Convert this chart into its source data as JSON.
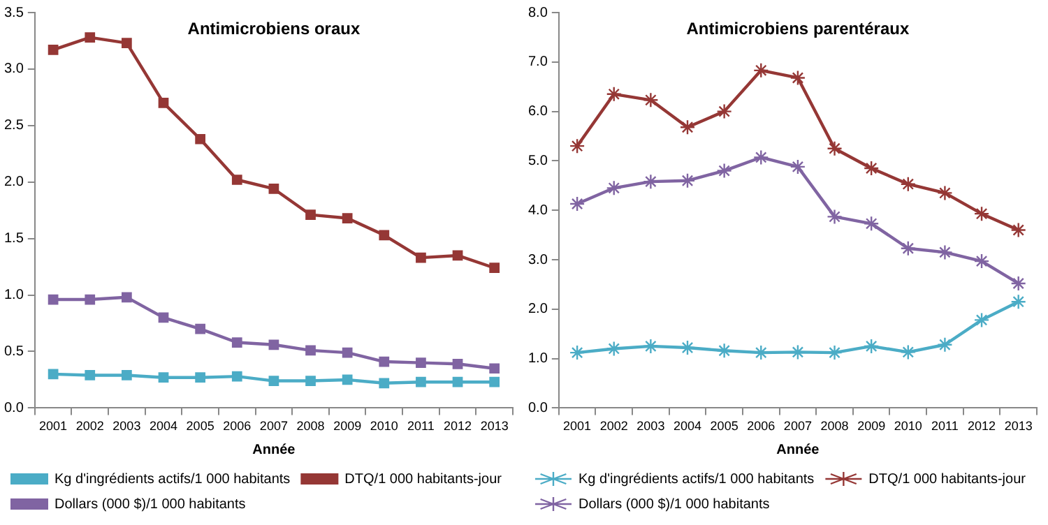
{
  "chart_data": [
    {
      "type": "line",
      "title": "Antimicrobiens oraux",
      "xlabel": "Année",
      "categories": [
        "2001",
        "2002",
        "2003",
        "2004",
        "2005",
        "2006",
        "2007",
        "2008",
        "2009",
        "2010",
        "2011",
        "2012",
        "2013"
      ],
      "series": [
        {
          "name": "Kg d'ingrédients actifs/1 000 habitants",
          "color": "#4bacc6",
          "values": [
            0.3,
            0.29,
            0.29,
            0.27,
            0.27,
            0.28,
            0.24,
            0.24,
            0.25,
            0.22,
            0.23,
            0.23,
            0.23
          ]
        },
        {
          "name": "DTQ/1 000 habitants-jour",
          "color": "#953735",
          "values": [
            3.17,
            3.28,
            3.23,
            2.7,
            2.38,
            2.02,
            1.94,
            1.71,
            1.68,
            1.53,
            1.33,
            1.35,
            1.24
          ]
        },
        {
          "name": "Dollars (000 $)/1 000 habitants",
          "color": "#8064a2",
          "values": [
            0.96,
            0.96,
            0.98,
            0.8,
            0.7,
            0.58,
            0.56,
            0.51,
            0.49,
            0.41,
            0.4,
            0.39,
            0.35
          ]
        }
      ],
      "ylim": [
        0,
        3.5
      ],
      "yticks": [
        {
          "value": 0,
          "label": "0.0"
        },
        {
          "value": 0.5,
          "label": "0.5"
        },
        {
          "value": 1,
          "label": "1.0"
        },
        {
          "value": 1.5,
          "label": "1.5"
        },
        {
          "value": 2,
          "label": "2.0"
        },
        {
          "value": 2.5,
          "label": "2.5"
        },
        {
          "value": 3,
          "label": "3.0"
        },
        {
          "value": 3.5,
          "label": "3.5"
        }
      ],
      "grid": false,
      "legend": "bottom",
      "marker": "square",
      "line_style": "solid"
    },
    {
      "type": "line",
      "title": "Antimicrobiens parentéraux",
      "xlabel": "Année",
      "categories": [
        "2001",
        "2002",
        "2003",
        "2004",
        "2005",
        "2006",
        "2007",
        "2008",
        "2009",
        "2010",
        "2011",
        "2012",
        "2013"
      ],
      "series": [
        {
          "name": "Kg d'ingrédients actifs/1 000 habitants",
          "color": "#4bacc6",
          "values": [
            1.12,
            1.2,
            1.25,
            1.22,
            1.16,
            1.12,
            1.13,
            1.12,
            1.25,
            1.13,
            1.28,
            1.78,
            2.15
          ]
        },
        {
          "name": "DTQ/1 000 habitants-jour",
          "color": "#953735",
          "values": [
            5.3,
            6.35,
            6.23,
            5.68,
            6.0,
            6.83,
            6.68,
            5.25,
            4.85,
            4.53,
            4.35,
            3.93,
            3.6
          ]
        },
        {
          "name": "Dollars (000 $)/1 000 habitants",
          "color": "#8064a2",
          "values": [
            4.13,
            4.45,
            4.58,
            4.6,
            4.8,
            5.07,
            4.88,
            3.87,
            3.73,
            3.23,
            3.15,
            2.97,
            2.52
          ]
        }
      ],
      "ylim": [
        0,
        8
      ],
      "yticks": [
        {
          "value": 0,
          "label": "0.0"
        },
        {
          "value": 1,
          "label": "1.0"
        },
        {
          "value": 2,
          "label": "2.0"
        },
        {
          "value": 3,
          "label": "3.0"
        },
        {
          "value": 4,
          "label": "4.0"
        },
        {
          "value": 5,
          "label": "5.0"
        },
        {
          "value": 6,
          "label": "6.0"
        },
        {
          "value": 7,
          "label": "7.0"
        },
        {
          "value": 8,
          "label": "8.0"
        }
      ],
      "grid": false,
      "legend": "bottom",
      "marker": "cross",
      "line_style": "solid"
    }
  ]
}
